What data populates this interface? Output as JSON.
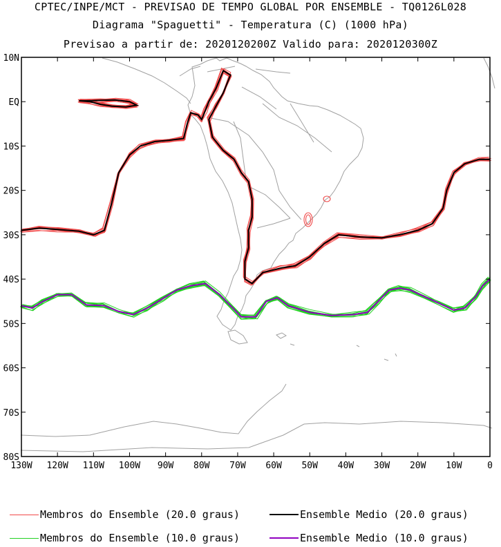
{
  "header": {
    "line1": "CPTEC/INPE/MCT - PREVISAO DE TEMPO GLOBAL POR ENSEMBLE - TQ0126L028",
    "line2": "Diagrama \"Spaguetti\" - Temperatura (C) (1000 hPa)",
    "line3": "Previsao a partir de: 2020120200Z  Valido para: 2020120300Z"
  },
  "axes": {
    "lat_labels": [
      "10N",
      "EQ",
      "10S",
      "20S",
      "30S",
      "40S",
      "50S",
      "60S",
      "70S",
      "80S"
    ],
    "lat_values": [
      10,
      0,
      -10,
      -20,
      -30,
      -40,
      -50,
      -60,
      -70,
      -80
    ],
    "lon_labels": [
      "130W",
      "120W",
      "110W",
      "100W",
      "90W",
      "80W",
      "70W",
      "60W",
      "50W",
      "40W",
      "30W",
      "20W",
      "10W",
      "0"
    ],
    "lon_values": [
      -130,
      -120,
      -110,
      -100,
      -90,
      -80,
      -70,
      -60,
      -50,
      -40,
      -30,
      -20,
      -10,
      0
    ],
    "lon_range": [
      -130,
      0
    ],
    "lat_range": [
      -80,
      10
    ]
  },
  "colors": {
    "coast": "#a0a0a0",
    "members_20": "#f04848",
    "mean_20": "#000000",
    "members_10": "#20d020",
    "mean_10": "#9000c0"
  },
  "legend": {
    "members_20": "Membros do Ensemble (20.0 graus)",
    "mean_20": "Ensemble Medio (20.0 graus)",
    "members_10": "Membros do Ensemble (10.0 graus)",
    "mean_10": "Ensemble Medio (10.0 graus)"
  },
  "contours": {
    "isotherm_20_mean": [
      [
        -130,
        -29
      ],
      [
        -125,
        -28.5
      ],
      [
        -120,
        -28.8
      ],
      [
        -114,
        -29.2
      ],
      [
        -110,
        -30
      ],
      [
        -107,
        -29
      ],
      [
        -105,
        -23
      ],
      [
        -103,
        -16
      ],
      [
        -100,
        -12
      ],
      [
        -97,
        -10
      ],
      [
        -93,
        -9
      ],
      [
        -89,
        -8.7
      ],
      [
        -85,
        -8.3
      ],
      [
        -84,
        -5
      ],
      [
        -83,
        -2.5
      ],
      [
        -81,
        -3
      ],
      [
        -80,
        -4
      ],
      [
        -79,
        -2
      ],
      [
        -78,
        0
      ],
      [
        -76,
        3
      ],
      [
        -74,
        7
      ],
      [
        -72,
        6
      ],
      [
        -74,
        2
      ],
      [
        -76,
        -1
      ],
      [
        -78,
        -4
      ],
      [
        -77,
        -8
      ],
      [
        -74,
        -11
      ],
      [
        -71,
        -13
      ],
      [
        -69,
        -16
      ],
      [
        -67,
        -18
      ],
      [
        -66,
        -22
      ],
      [
        -66,
        -26
      ],
      [
        -67,
        -29
      ],
      [
        -67,
        -33
      ],
      [
        -68,
        -36
      ],
      [
        -68,
        -40
      ],
      [
        -66,
        -41
      ],
      [
        -63,
        -38.5
      ],
      [
        -58,
        -37.5
      ],
      [
        -54,
        -37
      ],
      [
        -50,
        -35
      ],
      [
        -46,
        -32
      ],
      [
        -42,
        -30
      ],
      [
        -36,
        -30.5
      ],
      [
        -30,
        -30.7
      ],
      [
        -25,
        -30
      ],
      [
        -20,
        -29
      ],
      [
        -16,
        -27.5
      ],
      [
        -13,
        -24
      ],
      [
        -12,
        -20
      ],
      [
        -10,
        -16
      ],
      [
        -7,
        -14
      ],
      [
        -3,
        -13
      ],
      [
        0,
        -13
      ]
    ],
    "isotherm_20_island": [
      [
        -114,
        0.2
      ],
      [
        -111,
        0
      ],
      [
        -108,
        -0.6
      ],
      [
        -105,
        -1
      ],
      [
        -101,
        -1.2
      ],
      [
        -98,
        -0.8
      ],
      [
        -100,
        0
      ],
      [
        -104,
        0.4
      ],
      [
        -108,
        0.3
      ],
      [
        -111,
        0.2
      ],
      [
        -114,
        0.2
      ]
    ],
    "isotherm_10_mean": [
      [
        -130,
        -46
      ],
      [
        -127,
        -46.5
      ],
      [
        -124,
        -45
      ],
      [
        -120,
        -43.5
      ],
      [
        -116,
        -43.5
      ],
      [
        -112,
        -45.8
      ],
      [
        -107,
        -46
      ],
      [
        -103,
        -47.3
      ],
      [
        -99,
        -48
      ],
      [
        -95,
        -46.5
      ],
      [
        -91,
        -44.5
      ],
      [
        -87,
        -42.5
      ],
      [
        -83,
        -41.5
      ],
      [
        -79,
        -41
      ],
      [
        -75,
        -43.5
      ],
      [
        -72,
        -46
      ],
      [
        -69,
        -48.5
      ],
      [
        -65,
        -48.5
      ],
      [
        -62,
        -45
      ],
      [
        -59,
        -44.2
      ],
      [
        -56,
        -46
      ],
      [
        -50,
        -47.5
      ],
      [
        -44,
        -48.2
      ],
      [
        -38,
        -48
      ],
      [
        -34,
        -47.5
      ],
      [
        -31,
        -45
      ],
      [
        -28,
        -42.5
      ],
      [
        -25,
        -42
      ],
      [
        -22,
        -42.5
      ],
      [
        -18,
        -44
      ],
      [
        -14,
        -45.5
      ],
      [
        -10,
        -47
      ],
      [
        -7,
        -46.5
      ],
      [
        -4,
        -44
      ],
      [
        -2,
        -41.5
      ],
      [
        0,
        -40
      ]
    ]
  }
}
